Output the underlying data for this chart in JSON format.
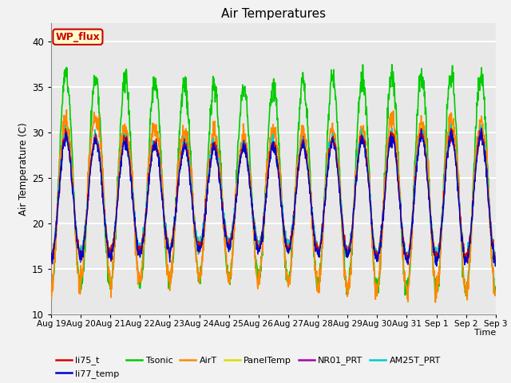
{
  "title": "Air Temperatures",
  "ylabel": "Air Temperature (C)",
  "xlabel": "Time",
  "ylim": [
    10,
    42
  ],
  "yticks": [
    10,
    15,
    20,
    25,
    30,
    35,
    40
  ],
  "num_days": 15,
  "series_order": [
    "li75_t",
    "li77_temp",
    "Tsonic",
    "AirT",
    "PanelTemp",
    "NR01_PRT",
    "AM25T_PRT"
  ],
  "series": {
    "li75_t": {
      "color": "#dd0000",
      "lw": 1.0,
      "zorder": 5
    },
    "li77_temp": {
      "color": "#0000cc",
      "lw": 1.0,
      "zorder": 5
    },
    "Tsonic": {
      "color": "#00cc00",
      "lw": 1.2,
      "zorder": 2
    },
    "AirT": {
      "color": "#ff8800",
      "lw": 1.2,
      "zorder": 3
    },
    "PanelTemp": {
      "color": "#dddd00",
      "lw": 1.0,
      "zorder": 4
    },
    "NR01_PRT": {
      "color": "#aa00aa",
      "lw": 1.0,
      "zorder": 4
    },
    "AM25T_PRT": {
      "color": "#00cccc",
      "lw": 1.0,
      "zorder": 4
    }
  },
  "legend_box": {
    "text": "WP_flux",
    "facecolor": "#ffffcc",
    "edgecolor": "#cc0000",
    "textcolor": "#cc0000"
  },
  "bg_color": "#e8e8e8",
  "grid_color": "#ffffff",
  "fig_bg": "#f2f2f2",
  "tick_labels": [
    "Aug 19",
    "Aug 20",
    "Aug 21",
    "Aug 22",
    "Aug 23",
    "Aug 24",
    "Aug 25",
    "Aug 26",
    "Aug 27",
    "Aug 28",
    "Aug 29",
    "Aug 30",
    "Aug 31",
    "Sep 1",
    "Sep 2",
    "Sep 3"
  ]
}
